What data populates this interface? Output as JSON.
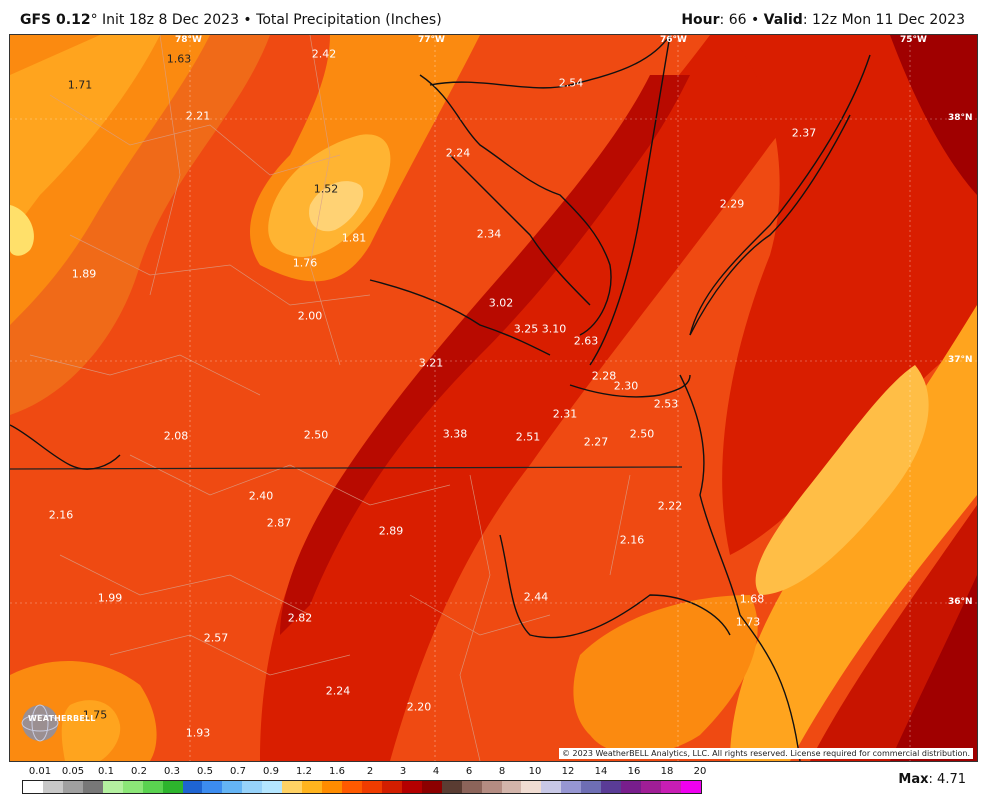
{
  "header": {
    "model": "GFS 0.12",
    "degree": "°",
    "init": " Init 18z 8 Dec 2023 • Total Precipitation (Inches)",
    "hour_label": "Hour",
    "hour_value": ": 66 • ",
    "valid_label": "Valid",
    "valid_value": ": 12z Mon 11 Dec 2023"
  },
  "map": {
    "lon_ticks": [
      "78°W",
      "77°W",
      "76°W",
      "75°W"
    ],
    "lat_ticks": [
      "38°N",
      "37°N",
      "36°N"
    ],
    "values": [
      "1.63",
      "2.42",
      "1.71",
      "2.54",
      "2.21",
      "2.37",
      "2.24",
      "1.52",
      "2.29",
      "1.81",
      "2.34",
      "1.89",
      "1.76",
      "3.02",
      "2.00",
      "3.25",
      "3.10",
      "2.63",
      "3.21",
      "2.28",
      "2.30",
      "2.53",
      "2.31",
      "2.08",
      "2.50",
      "3.38",
      "2.51",
      "2.27",
      "2.50",
      "2.40",
      "2.22",
      "2.16",
      "2.87",
      "2.89",
      "2.16",
      "1.99",
      "2.44",
      "1.68",
      "2.82",
      "2.57",
      "1.73",
      "2.24",
      "1.75",
      "2.20",
      "1.93"
    ],
    "copyright": "© 2023 WeatherBELL Analytics, LLC. All rights reserved. License required for commercial distribution.",
    "logo_text": "WEATHERBELL"
  },
  "legend": {
    "labels": [
      "0.01",
      "0.05",
      "0.1",
      "0.2",
      "0.3",
      "0.5",
      "0.7",
      "0.9",
      "1.2",
      "1.6",
      "2",
      "3",
      "4",
      "6",
      "8",
      "10",
      "12",
      "14",
      "16",
      "18",
      "20"
    ],
    "colors": [
      "#ffffff",
      "#c8c8c8",
      "#a0a0a0",
      "#787878",
      "#b4f0a0",
      "#8ce678",
      "#5ad250",
      "#2db42d",
      "#1e64d2",
      "#3c8cf0",
      "#64b4f5",
      "#96d2fa",
      "#b4e6ff",
      "#ffd264",
      "#ffb41e",
      "#ff8c00",
      "#ff5a00",
      "#f03c00",
      "#d21e00",
      "#b40000",
      "#8c0000",
      "#5a3c32",
      "#8c645a",
      "#b48c82",
      "#d2b4aa",
      "#f0dcd2",
      "#c8c8e6",
      "#9696d2",
      "#6e6eb4",
      "#5a3c96",
      "#781e8c",
      "#a01e96",
      "#c81eb4",
      "#f000f0"
    ],
    "max_label": "Max",
    "max_value": ": 4.71"
  }
}
